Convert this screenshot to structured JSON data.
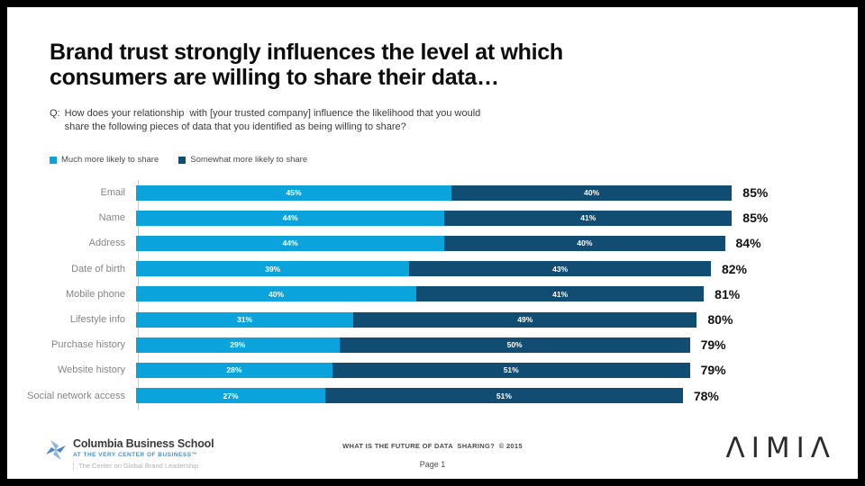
{
  "slide": {
    "title_line1": "Brand trust strongly influences the level at which",
    "title_line2": "consumers are willing to share their data…",
    "question_prefix": "Q:",
    "question": "How does your relationship  with [your trusted company] influence the likelihood that you would\nshare the following pieces of data that you identified as being willing to share?"
  },
  "colors": {
    "much_more": "#0AA3DC",
    "somewhat_more": "#114D72"
  },
  "legend": [
    {
      "label": "Much more likely to share",
      "color": "#0AA3DC"
    },
    {
      "label": "Somewhat more likely to share",
      "color": "#114D72"
    }
  ],
  "chart_data": {
    "type": "bar",
    "orientation": "horizontal",
    "stacked": true,
    "grid": false,
    "legend_position": "top-left",
    "xlim": [
      0,
      100
    ],
    "value_suffix": "%",
    "categories": [
      "Email",
      "Name",
      "Address",
      "Date of birth",
      "Mobile phone",
      "Lifestyle info",
      "Purchase history",
      "Website history",
      "Social network access"
    ],
    "series": [
      {
        "name": "Much more likely to share",
        "color": "#0AA3DC",
        "values": [
          45,
          44,
          44,
          39,
          40,
          31,
          29,
          28,
          27
        ]
      },
      {
        "name": "Somewhat more likely to share",
        "color": "#114D72",
        "values": [
          40,
          41,
          40,
          43,
          41,
          49,
          50,
          51,
          51
        ]
      }
    ],
    "totals": [
      "85%",
      "85%",
      "84%",
      "82%",
      "81%",
      "80%",
      "79%",
      "79%",
      "78%"
    ]
  },
  "footer": {
    "columbia": {
      "name": "Columbia Business School",
      "tagline": "AT THE VERY CENTER OF BUSINESS™",
      "subunit": "The Center on Global Brand Leadership"
    },
    "center_line1": "WHAT IS THE FUTURE OF DATA  SHARING?  © 2015",
    "center_line2": "Page 1",
    "aimia": "ΛIMIΛ"
  }
}
